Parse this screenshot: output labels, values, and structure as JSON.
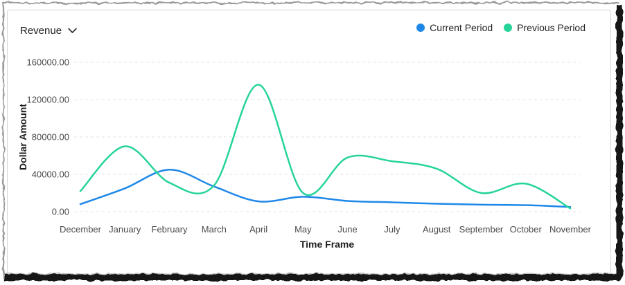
{
  "panel": {
    "metric_dropdown": {
      "label": "Revenue"
    },
    "legend": [
      {
        "label": "Current Period",
        "color": "#1e88e8"
      },
      {
        "label": "Previous Period",
        "color": "#26d49a"
      }
    ]
  },
  "chart_data": {
    "type": "line",
    "title": "",
    "xlabel": "Time Frame",
    "ylabel": "Dollar Amount",
    "categories": [
      "December",
      "January",
      "February",
      "March",
      "April",
      "May",
      "June",
      "July",
      "August",
      "September",
      "October",
      "November"
    ],
    "series": [
      {
        "name": "Current Period",
        "color": "#1e88e8",
        "values": [
          8000,
          25000,
          45000,
          27000,
          11000,
          16000,
          11500,
          10000,
          8500,
          7500,
          7000,
          5000
        ]
      },
      {
        "name": "Previous Period",
        "color": "#26d49a",
        "values": [
          22000,
          70000,
          31000,
          28000,
          136000,
          20000,
          58000,
          54000,
          46000,
          20000,
          30000,
          3500
        ]
      }
    ],
    "ylim": [
      0,
      160000
    ],
    "y_ticks": [
      {
        "value": 0,
        "label": "0.00"
      },
      {
        "value": 40000,
        "label": "40000.00"
      },
      {
        "value": 80000,
        "label": "80000.00"
      },
      {
        "value": 120000,
        "label": "120000.00"
      },
      {
        "value": 160000,
        "label": "160000.00"
      }
    ],
    "grid": "dashed-horizontal",
    "legend_position": "top-right",
    "smooth": true
  },
  "theme": {
    "grid_color": "#e3e3e3",
    "tick_text_color": "#4a4a4a",
    "axis_title_color": "#1d1d1d",
    "torn_edge_dark": "#151515",
    "torn_edge_gray": "#9b9b9b"
  }
}
